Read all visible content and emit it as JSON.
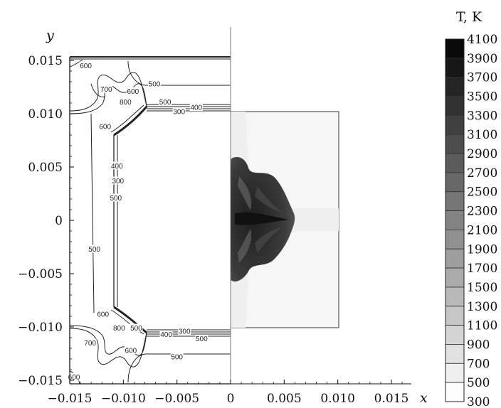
{
  "chart_data": {
    "type": "heatmap",
    "title": "",
    "xlabel": "x",
    "ylabel": "y",
    "xlim": [
      -0.015,
      0.017
    ],
    "ylim": [
      -0.0155,
      0.0162
    ],
    "x_ticks": [
      -0.015,
      -0.01,
      -0.005,
      0,
      0.005,
      0.01,
      0.015
    ],
    "x_tick_labels": [
      "−0.015",
      "−0.010",
      "−0.005",
      "0",
      "0.005",
      "0.010",
      "0.015"
    ],
    "y_ticks": [
      0.015,
      0.01,
      0.005,
      0,
      -0.005,
      -0.01,
      -0.015
    ],
    "y_tick_labels": [
      "0.015",
      "0.010",
      "0.005",
      "0",
      "−0.005",
      "−0.010",
      "−0.015"
    ],
    "colorbar": {
      "title": "T, K",
      "levels": [
        4100,
        3900,
        3700,
        3500,
        3300,
        3100,
        2900,
        2700,
        2500,
        2300,
        2100,
        1900,
        1700,
        1500,
        1300,
        1100,
        900,
        700,
        500,
        300
      ],
      "labels": [
        "4100",
        "3900",
        "3700",
        "3500",
        "3300",
        "3100",
        "2900",
        "2700",
        "2500",
        "2300",
        "2100",
        "1900",
        "1700",
        "1500",
        "1300",
        "1100",
        "900",
        "700",
        "500",
        "300"
      ]
    },
    "contour_labels": [
      {
        "text": "600",
        "x": -0.0135,
        "y": 0.0145
      },
      {
        "text": "700",
        "x": -0.0116,
        "y": 0.0123
      },
      {
        "text": "600",
        "x": -0.0091,
        "y": 0.0121
      },
      {
        "text": "500",
        "x": -0.0071,
        "y": 0.0128
      },
      {
        "text": "800",
        "x": -0.0098,
        "y": 0.0111
      },
      {
        "text": "500",
        "x": -0.0061,
        "y": 0.0111
      },
      {
        "text": "300",
        "x": -0.0048,
        "y": 0.0102
      },
      {
        "text": "400",
        "x": -0.0032,
        "y": 0.0106
      },
      {
        "text": "600",
        "x": -0.0117,
        "y": 0.0088
      },
      {
        "text": "400",
        "x": -0.0106,
        "y": 0.0051
      },
      {
        "text": "300",
        "x": -0.0105,
        "y": 0.0037
      },
      {
        "text": "500",
        "x": -0.0107,
        "y": 0.0021
      },
      {
        "text": "500",
        "x": -0.0127,
        "y": -0.0027
      },
      {
        "text": "600",
        "x": -0.0119,
        "y": -0.0088
      },
      {
        "text": "800",
        "x": -0.0104,
        "y": -0.0101
      },
      {
        "text": "500",
        "x": -0.0088,
        "y": -0.0101
      },
      {
        "text": "400",
        "x": -0.006,
        "y": -0.0107
      },
      {
        "text": "300",
        "x": -0.0043,
        "y": -0.0104
      },
      {
        "text": "500",
        "x": -0.0027,
        "y": -0.0111
      },
      {
        "text": "700",
        "x": -0.0131,
        "y": -0.0115
      },
      {
        "text": "600",
        "x": -0.0093,
        "y": -0.0122
      },
      {
        "text": "500",
        "x": -0.005,
        "y": -0.0128
      },
      {
        "text": "600",
        "x": -0.0146,
        "y": -0.0147
      }
    ],
    "grid": false,
    "legend": "colorbar-right"
  }
}
